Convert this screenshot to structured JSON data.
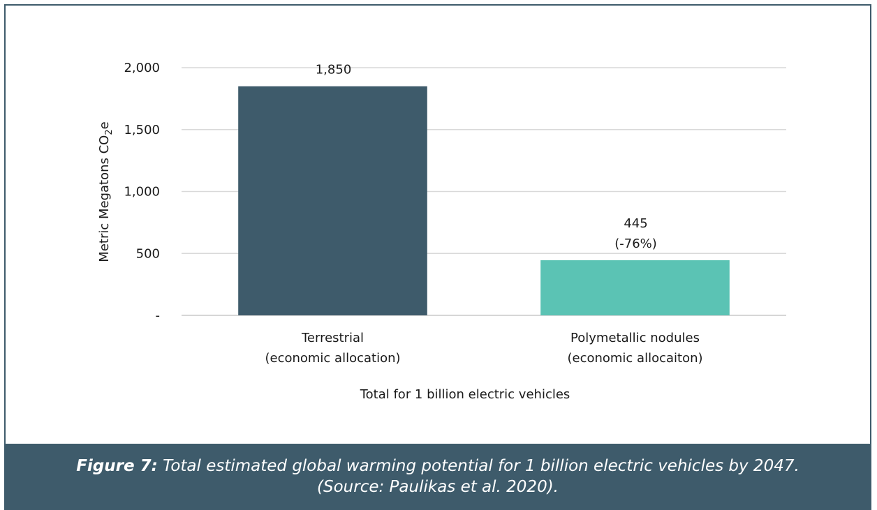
{
  "chart_data": {
    "type": "bar",
    "categories": [
      [
        "Terrestrial",
        "(economic allocation)"
      ],
      [
        "Polymetallic nodules",
        "(economic allocaiton)"
      ]
    ],
    "values": [
      1850,
      445
    ],
    "data_labels": [
      [
        "1,850"
      ],
      [
        "445",
        "(-76%)"
      ]
    ],
    "colors": [
      "#3e5b6b",
      "#5bc3b4"
    ],
    "xlabel": "Total for 1 billion electric vehicles",
    "ylabel": "Metric Megatons CO",
    "ylabel_sub": "2",
    "ylabel_suffix": "e",
    "ylim": [
      0,
      2000
    ],
    "yticks": [
      {
        "value": 0,
        "label": "-"
      },
      {
        "value": 500,
        "label": "500"
      },
      {
        "value": 1000,
        "label": "1,000"
      },
      {
        "value": 1500,
        "label": "1,500"
      },
      {
        "value": 2000,
        "label": "2,000"
      }
    ],
    "grid": true
  },
  "caption": {
    "label": "Figure 7:",
    "line1": " Total estimated global warming potential for 1 billion electric vehicles by 2047.",
    "line2": "(Source: Paulikas et al. 2020)."
  }
}
